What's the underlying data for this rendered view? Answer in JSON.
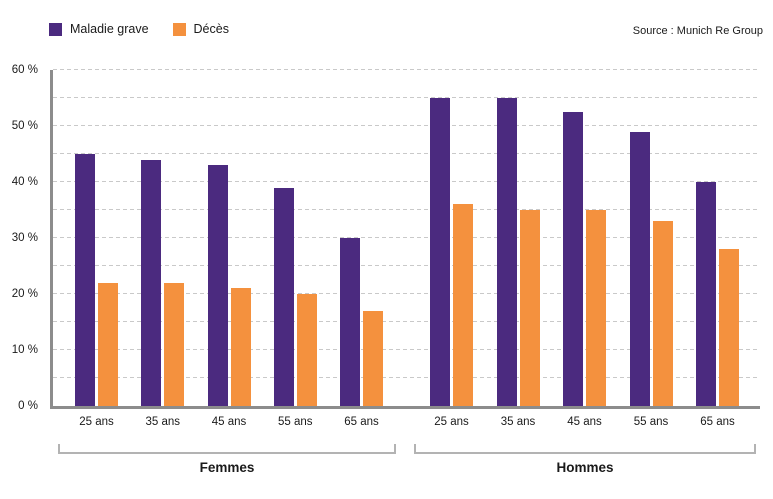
{
  "legend": {
    "items": [
      {
        "label": "Maladie grave",
        "color": "#4B2A7F"
      },
      {
        "label": "Décès",
        "color": "#F4913E"
      }
    ]
  },
  "source": "Source : Munich Re Group",
  "chart_data": {
    "type": "bar",
    "title": "",
    "categories": [
      "25 ans",
      "35 ans",
      "45 ans",
      "55 ans",
      "65 ans"
    ],
    "series_names": [
      "Maladie grave",
      "Décès"
    ],
    "groups": [
      {
        "label": "Femmes",
        "series": [
          {
            "name": "Maladie grave",
            "values": [
              45,
              44,
              43,
              39,
              30
            ]
          },
          {
            "name": "Décès",
            "values": [
              22,
              22,
              21,
              20,
              17
            ]
          }
        ]
      },
      {
        "label": "Hommes",
        "series": [
          {
            "name": "Maladie grave",
            "values": [
              55,
              55,
              52.5,
              49,
              40
            ]
          },
          {
            "name": "Décès",
            "values": [
              36,
              35,
              35,
              33,
              28
            ]
          }
        ]
      }
    ],
    "ylim": [
      0,
      60
    ],
    "y_major_step": 10,
    "y_minor_step": 5,
    "y_tick_suffix": " %",
    "grid": "horizontal-dashed",
    "legend_position": "top-left",
    "colors": {
      "Maladie grave": "#4B2A7F",
      "Décès": "#F4913E"
    },
    "axis_color": "#8C8C8C",
    "gridline_color": "#C9C9C9"
  }
}
